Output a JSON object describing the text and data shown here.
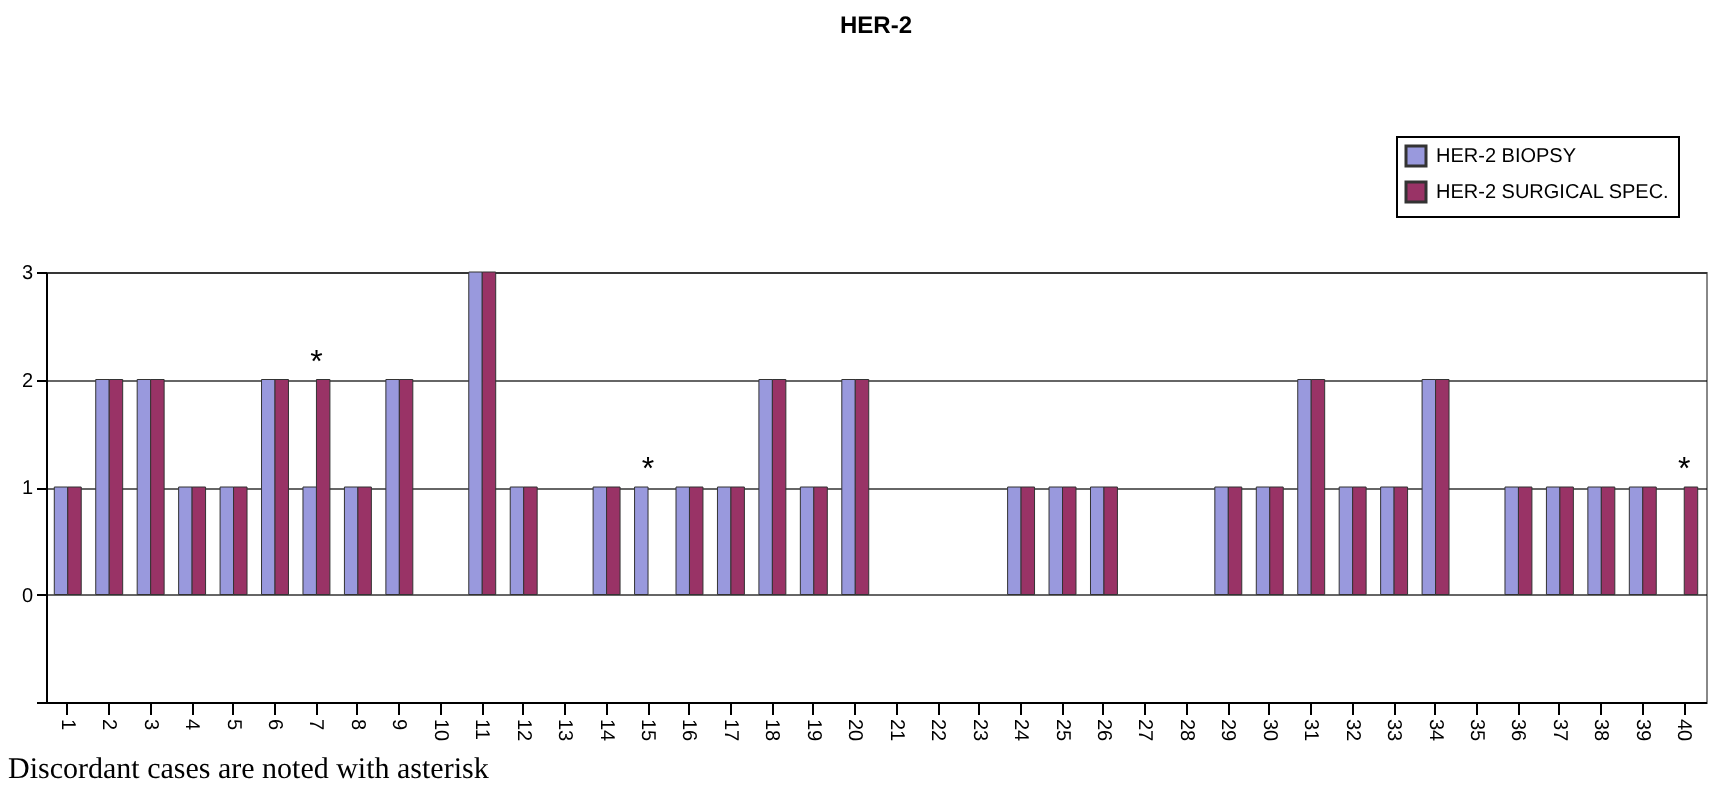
{
  "chart_data": {
    "type": "bar",
    "title": "HER-2",
    "categories": [
      "1",
      "2",
      "3",
      "4",
      "5",
      "6",
      "7",
      "8",
      "9",
      "10",
      "11",
      "12",
      "13",
      "14",
      "15",
      "16",
      "17",
      "18",
      "19",
      "20",
      "21",
      "22",
      "23",
      "24",
      "25",
      "26",
      "27",
      "28",
      "29",
      "30",
      "31",
      "32",
      "33",
      "34",
      "35",
      "36",
      "37",
      "38",
      "39",
      "40"
    ],
    "series": [
      {
        "name": "HER-2 BIOPSY",
        "color": "#9999dd",
        "values": [
          1,
          2,
          2,
          1,
          1,
          2,
          1,
          1,
          2,
          0,
          3,
          1,
          0,
          1,
          1,
          1,
          1,
          2,
          1,
          2,
          0,
          0,
          0,
          1,
          1,
          1,
          0,
          0,
          1,
          1,
          2,
          1,
          1,
          2,
          0,
          1,
          1,
          1,
          1,
          0
        ]
      },
      {
        "name": "HER-2 SURGICAL SPEC.",
        "color": "#993366",
        "values": [
          1,
          2,
          2,
          1,
          1,
          2,
          2,
          1,
          2,
          0,
          3,
          1,
          0,
          1,
          0,
          1,
          1,
          2,
          1,
          2,
          0,
          0,
          0,
          1,
          1,
          1,
          0,
          0,
          1,
          1,
          2,
          1,
          1,
          2,
          0,
          1,
          1,
          1,
          1,
          1
        ]
      }
    ],
    "ylim": [
      -1,
      3
    ],
    "yticks": [
      {
        "value": -1,
        "label": null
      },
      0,
      1,
      2,
      3
    ],
    "grid": "y",
    "legend": "top right",
    "annotations": [
      {
        "text": "*",
        "x": "7",
        "y": 2
      },
      {
        "text": "*",
        "x": "15",
        "y": 1
      },
      {
        "text": "*",
        "x": "40",
        "y": 1
      },
      "Discordant cases are noted with asterisk"
    ]
  }
}
